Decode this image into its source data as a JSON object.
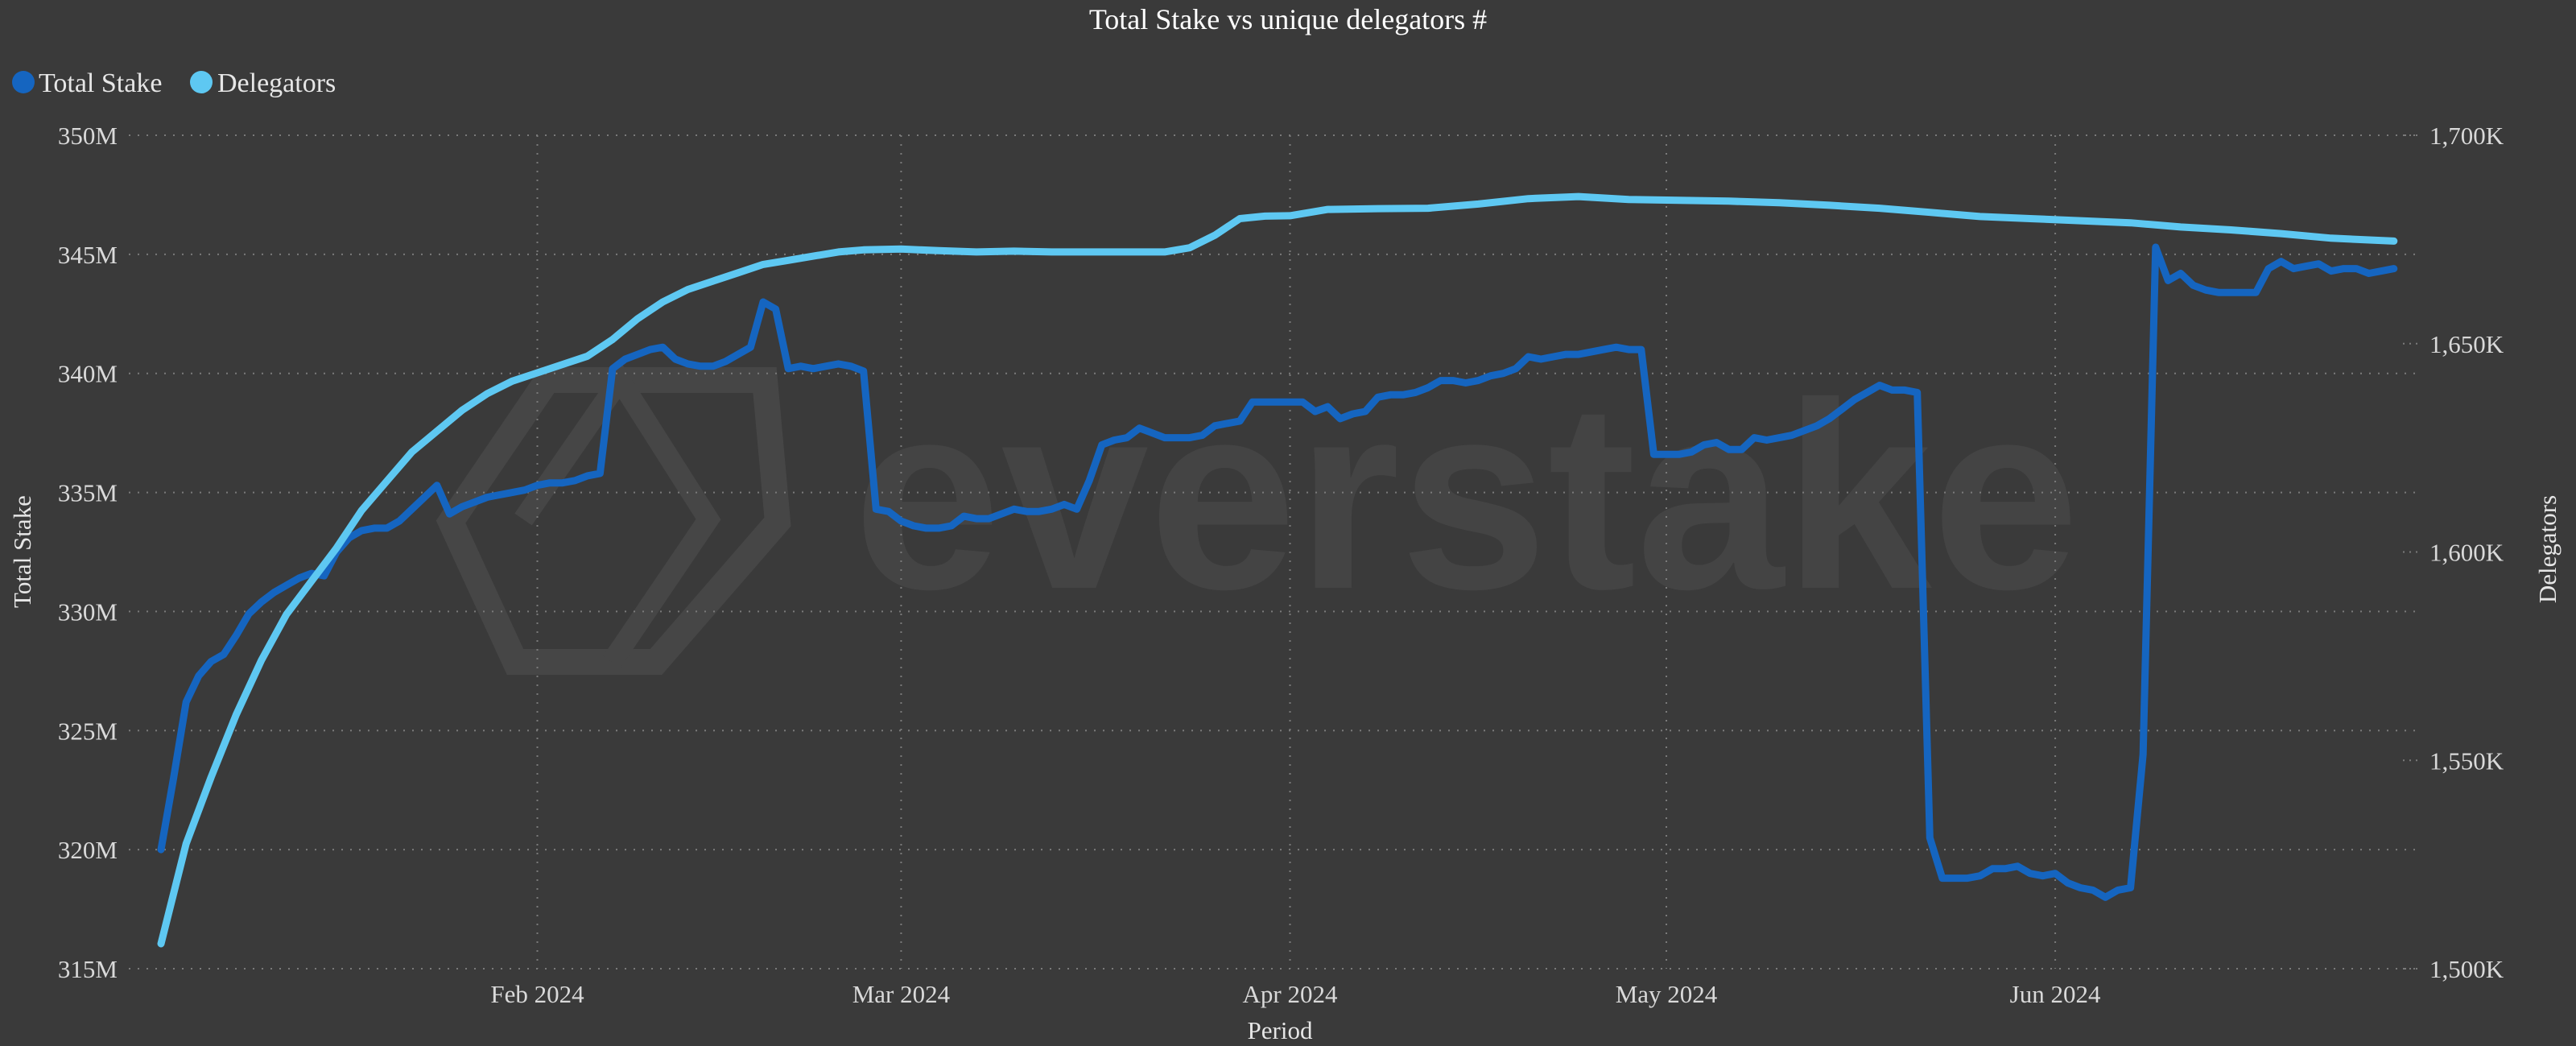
{
  "chart_data": {
    "type": "line",
    "title": "Total Stake vs unique delegators #",
    "xlabel": "Period",
    "ylabel": "Total Stake",
    "y2label": "Delegators",
    "watermark": "everstake",
    "legend_position": "top-left",
    "grid": true,
    "x_range": [
      "2024-01-02",
      "2024-06-30"
    ],
    "ylim": [
      315,
      350
    ],
    "y2lim": [
      1500,
      1700
    ],
    "x_ticks": [
      {
        "date": "2024-02-01",
        "label": "Feb 2024"
      },
      {
        "date": "2024-03-01",
        "label": "Mar 2024"
      },
      {
        "date": "2024-04-01",
        "label": "Apr 2024"
      },
      {
        "date": "2024-05-01",
        "label": "May 2024"
      },
      {
        "date": "2024-06-01",
        "label": "Jun 2024"
      }
    ],
    "y_ticks": [
      {
        "value": 315,
        "label": "315M"
      },
      {
        "value": 320,
        "label": "320M"
      },
      {
        "value": 325,
        "label": "325M"
      },
      {
        "value": 330,
        "label": "330M"
      },
      {
        "value": 335,
        "label": "335M"
      },
      {
        "value": 340,
        "label": "340M"
      },
      {
        "value": 345,
        "label": "345M"
      },
      {
        "value": 350,
        "label": "350M"
      }
    ],
    "y2_ticks": [
      {
        "value": 1500,
        "label": "1,500K"
      },
      {
        "value": 1550,
        "label": "1,550K"
      },
      {
        "value": 1600,
        "label": "1,600K"
      },
      {
        "value": 1650,
        "label": "1,650K"
      },
      {
        "value": 1700,
        "label": "1,700K"
      }
    ],
    "series": [
      {
        "name": "Total Stake",
        "axis": "left",
        "color": "#1565c0",
        "points": [
          [
            "2024-01-02",
            320.0
          ],
          [
            "2024-01-03",
            323.0
          ],
          [
            "2024-01-04",
            326.2
          ],
          [
            "2024-01-05",
            327.3
          ],
          [
            "2024-01-06",
            327.9
          ],
          [
            "2024-01-07",
            328.2
          ],
          [
            "2024-01-08",
            329.0
          ],
          [
            "2024-01-09",
            329.9
          ],
          [
            "2024-01-10",
            330.4
          ],
          [
            "2024-01-11",
            330.8
          ],
          [
            "2024-01-12",
            331.1
          ],
          [
            "2024-01-13",
            331.4
          ],
          [
            "2024-01-14",
            331.6
          ],
          [
            "2024-01-15",
            331.5
          ],
          [
            "2024-01-16",
            332.5
          ],
          [
            "2024-01-17",
            333.1
          ],
          [
            "2024-01-18",
            333.4
          ],
          [
            "2024-01-19",
            333.5
          ],
          [
            "2024-01-20",
            333.5
          ],
          [
            "2024-01-21",
            333.8
          ],
          [
            "2024-01-22",
            334.3
          ],
          [
            "2024-01-23",
            334.8
          ],
          [
            "2024-01-24",
            335.3
          ],
          [
            "2024-01-25",
            334.1
          ],
          [
            "2024-01-26",
            334.4
          ],
          [
            "2024-01-27",
            334.6
          ],
          [
            "2024-01-28",
            334.8
          ],
          [
            "2024-01-29",
            334.9
          ],
          [
            "2024-01-30",
            335.0
          ],
          [
            "2024-01-31",
            335.1
          ],
          [
            "2024-02-01",
            335.3
          ],
          [
            "2024-02-02",
            335.4
          ],
          [
            "2024-02-03",
            335.4
          ],
          [
            "2024-02-04",
            335.5
          ],
          [
            "2024-02-05",
            335.7
          ],
          [
            "2024-02-06",
            335.8
          ],
          [
            "2024-02-07",
            340.2
          ],
          [
            "2024-02-08",
            340.6
          ],
          [
            "2024-02-09",
            340.8
          ],
          [
            "2024-02-10",
            341.0
          ],
          [
            "2024-02-11",
            341.1
          ],
          [
            "2024-02-12",
            340.6
          ],
          [
            "2024-02-13",
            340.4
          ],
          [
            "2024-02-14",
            340.3
          ],
          [
            "2024-02-15",
            340.3
          ],
          [
            "2024-02-16",
            340.5
          ],
          [
            "2024-02-17",
            340.8
          ],
          [
            "2024-02-18",
            341.1
          ],
          [
            "2024-02-19",
            343.0
          ],
          [
            "2024-02-20",
            342.7
          ],
          [
            "2024-02-21",
            340.2
          ],
          [
            "2024-02-22",
            340.3
          ],
          [
            "2024-02-23",
            340.2
          ],
          [
            "2024-02-24",
            340.3
          ],
          [
            "2024-02-25",
            340.4
          ],
          [
            "2024-02-26",
            340.3
          ],
          [
            "2024-02-27",
            340.1
          ],
          [
            "2024-02-28",
            334.3
          ],
          [
            "2024-02-29",
            334.2
          ],
          [
            "2024-03-01",
            333.8
          ],
          [
            "2024-03-02",
            333.6
          ],
          [
            "2024-03-03",
            333.5
          ],
          [
            "2024-03-04",
            333.5
          ],
          [
            "2024-03-05",
            333.6
          ],
          [
            "2024-03-06",
            334.0
          ],
          [
            "2024-03-07",
            333.9
          ],
          [
            "2024-03-08",
            333.9
          ],
          [
            "2024-03-09",
            334.1
          ],
          [
            "2024-03-10",
            334.3
          ],
          [
            "2024-03-11",
            334.2
          ],
          [
            "2024-03-12",
            334.2
          ],
          [
            "2024-03-13",
            334.3
          ],
          [
            "2024-03-14",
            334.5
          ],
          [
            "2024-03-15",
            334.3
          ],
          [
            "2024-03-16",
            335.5
          ],
          [
            "2024-03-17",
            337.0
          ],
          [
            "2024-03-18",
            337.2
          ],
          [
            "2024-03-19",
            337.3
          ],
          [
            "2024-03-20",
            337.7
          ],
          [
            "2024-03-21",
            337.5
          ],
          [
            "2024-03-22",
            337.3
          ],
          [
            "2024-03-23",
            337.3
          ],
          [
            "2024-03-24",
            337.3
          ],
          [
            "2024-03-25",
            337.4
          ],
          [
            "2024-03-26",
            337.8
          ],
          [
            "2024-03-27",
            337.9
          ],
          [
            "2024-03-28",
            338.0
          ],
          [
            "2024-03-29",
            338.8
          ],
          [
            "2024-03-30",
            338.8
          ],
          [
            "2024-03-31",
            338.8
          ],
          [
            "2024-04-01",
            338.8
          ],
          [
            "2024-04-02",
            338.8
          ],
          [
            "2024-04-03",
            338.4
          ],
          [
            "2024-04-04",
            338.6
          ],
          [
            "2024-04-05",
            338.1
          ],
          [
            "2024-04-06",
            338.3
          ],
          [
            "2024-04-07",
            338.4
          ],
          [
            "2024-04-08",
            339.0
          ],
          [
            "2024-04-09",
            339.1
          ],
          [
            "2024-04-10",
            339.1
          ],
          [
            "2024-04-11",
            339.2
          ],
          [
            "2024-04-12",
            339.4
          ],
          [
            "2024-04-13",
            339.7
          ],
          [
            "2024-04-14",
            339.7
          ],
          [
            "2024-04-15",
            339.6
          ],
          [
            "2024-04-16",
            339.7
          ],
          [
            "2024-04-17",
            339.9
          ],
          [
            "2024-04-18",
            340.0
          ],
          [
            "2024-04-19",
            340.2
          ],
          [
            "2024-04-20",
            340.7
          ],
          [
            "2024-04-21",
            340.6
          ],
          [
            "2024-04-22",
            340.7
          ],
          [
            "2024-04-23",
            340.8
          ],
          [
            "2024-04-24",
            340.8
          ],
          [
            "2024-04-25",
            340.9
          ],
          [
            "2024-04-26",
            341.0
          ],
          [
            "2024-04-27",
            341.1
          ],
          [
            "2024-04-28",
            341.0
          ],
          [
            "2024-04-29",
            341.0
          ],
          [
            "2024-04-30",
            336.6
          ],
          [
            "2024-05-01",
            336.6
          ],
          [
            "2024-05-02",
            336.6
          ],
          [
            "2024-05-03",
            336.7
          ],
          [
            "2024-05-04",
            337.0
          ],
          [
            "2024-05-05",
            337.1
          ],
          [
            "2024-05-06",
            336.8
          ],
          [
            "2024-05-07",
            336.8
          ],
          [
            "2024-05-08",
            337.3
          ],
          [
            "2024-05-09",
            337.2
          ],
          [
            "2024-05-10",
            337.3
          ],
          [
            "2024-05-11",
            337.4
          ],
          [
            "2024-05-12",
            337.6
          ],
          [
            "2024-05-13",
            337.8
          ],
          [
            "2024-05-14",
            338.1
          ],
          [
            "2024-05-15",
            338.5
          ],
          [
            "2024-05-16",
            338.9
          ],
          [
            "2024-05-17",
            339.2
          ],
          [
            "2024-05-18",
            339.5
          ],
          [
            "2024-05-19",
            339.3
          ],
          [
            "2024-05-20",
            339.3
          ],
          [
            "2024-05-21",
            339.2
          ],
          [
            "2024-05-22",
            320.5
          ],
          [
            "2024-05-23",
            318.8
          ],
          [
            "2024-05-24",
            318.8
          ],
          [
            "2024-05-25",
            318.8
          ],
          [
            "2024-05-26",
            318.9
          ],
          [
            "2024-05-27",
            319.2
          ],
          [
            "2024-05-28",
            319.2
          ],
          [
            "2024-05-29",
            319.3
          ],
          [
            "2024-05-30",
            319.0
          ],
          [
            "2024-05-31",
            318.9
          ],
          [
            "2024-06-01",
            319.0
          ],
          [
            "2024-06-02",
            318.6
          ],
          [
            "2024-06-03",
            318.4
          ],
          [
            "2024-06-04",
            318.3
          ],
          [
            "2024-06-05",
            318.0
          ],
          [
            "2024-06-06",
            318.3
          ],
          [
            "2024-06-07",
            318.4
          ],
          [
            "2024-06-08",
            324.0
          ],
          [
            "2024-06-09",
            345.3
          ],
          [
            "2024-06-10",
            343.9
          ],
          [
            "2024-06-11",
            344.2
          ],
          [
            "2024-06-12",
            343.7
          ],
          [
            "2024-06-13",
            343.5
          ],
          [
            "2024-06-14",
            343.4
          ],
          [
            "2024-06-15",
            343.4
          ],
          [
            "2024-06-16",
            343.4
          ],
          [
            "2024-06-17",
            343.4
          ],
          [
            "2024-06-18",
            344.4
          ],
          [
            "2024-06-19",
            344.7
          ],
          [
            "2024-06-20",
            344.4
          ],
          [
            "2024-06-21",
            344.5
          ],
          [
            "2024-06-22",
            344.6
          ],
          [
            "2024-06-23",
            344.3
          ],
          [
            "2024-06-24",
            344.4
          ],
          [
            "2024-06-25",
            344.4
          ],
          [
            "2024-06-26",
            344.2
          ],
          [
            "2024-06-27",
            344.3
          ],
          [
            "2024-06-28",
            344.4
          ]
        ]
      },
      {
        "name": "Delegators",
        "axis": "right",
        "color": "#5ec8f2",
        "points": [
          [
            "2024-01-02",
            1506
          ],
          [
            "2024-01-04",
            1530
          ],
          [
            "2024-01-06",
            1546
          ],
          [
            "2024-01-08",
            1561
          ],
          [
            "2024-01-10",
            1574
          ],
          [
            "2024-01-12",
            1585
          ],
          [
            "2024-01-14",
            1593
          ],
          [
            "2024-01-16",
            1601
          ],
          [
            "2024-01-18",
            1610
          ],
          [
            "2024-01-20",
            1617
          ],
          [
            "2024-01-22",
            1624
          ],
          [
            "2024-01-24",
            1629
          ],
          [
            "2024-01-26",
            1634
          ],
          [
            "2024-01-28",
            1638
          ],
          [
            "2024-01-30",
            1641
          ],
          [
            "2024-02-01",
            1643
          ],
          [
            "2024-02-03",
            1645
          ],
          [
            "2024-02-05",
            1647
          ],
          [
            "2024-02-07",
            1651
          ],
          [
            "2024-02-09",
            1656
          ],
          [
            "2024-02-11",
            1660
          ],
          [
            "2024-02-13",
            1663
          ],
          [
            "2024-02-15",
            1665
          ],
          [
            "2024-02-17",
            1667
          ],
          [
            "2024-02-19",
            1669
          ],
          [
            "2024-02-21",
            1670
          ],
          [
            "2024-02-23",
            1671
          ],
          [
            "2024-02-25",
            1672
          ],
          [
            "2024-02-27",
            1672.5
          ],
          [
            "2024-03-01",
            1672.7
          ],
          [
            "2024-03-04",
            1672.3
          ],
          [
            "2024-03-07",
            1672.0
          ],
          [
            "2024-03-10",
            1672.2
          ],
          [
            "2024-03-13",
            1672.0
          ],
          [
            "2024-03-16",
            1672.0
          ],
          [
            "2024-03-19",
            1672.0
          ],
          [
            "2024-03-22",
            1672.0
          ],
          [
            "2024-03-24",
            1673.0
          ],
          [
            "2024-03-26",
            1676.0
          ],
          [
            "2024-03-28",
            1680.0
          ],
          [
            "2024-03-30",
            1680.6
          ],
          [
            "2024-04-01",
            1680.7
          ],
          [
            "2024-04-04",
            1682.2
          ],
          [
            "2024-04-08",
            1682.4
          ],
          [
            "2024-04-12",
            1682.5
          ],
          [
            "2024-04-16",
            1683.5
          ],
          [
            "2024-04-20",
            1684.8
          ],
          [
            "2024-04-24",
            1685.3
          ],
          [
            "2024-04-28",
            1684.6
          ],
          [
            "2024-05-02",
            1684.4
          ],
          [
            "2024-05-06",
            1684.2
          ],
          [
            "2024-05-10",
            1683.8
          ],
          [
            "2024-05-14",
            1683.2
          ],
          [
            "2024-05-18",
            1682.5
          ],
          [
            "2024-05-22",
            1681.5
          ],
          [
            "2024-05-26",
            1680.5
          ],
          [
            "2024-05-30",
            1680.0
          ],
          [
            "2024-06-03",
            1679.5
          ],
          [
            "2024-06-07",
            1679.0
          ],
          [
            "2024-06-11",
            1678.0
          ],
          [
            "2024-06-15",
            1677.3
          ],
          [
            "2024-06-19",
            1676.4
          ],
          [
            "2024-06-23",
            1675.3
          ],
          [
            "2024-06-28",
            1674.6
          ]
        ]
      }
    ]
  }
}
